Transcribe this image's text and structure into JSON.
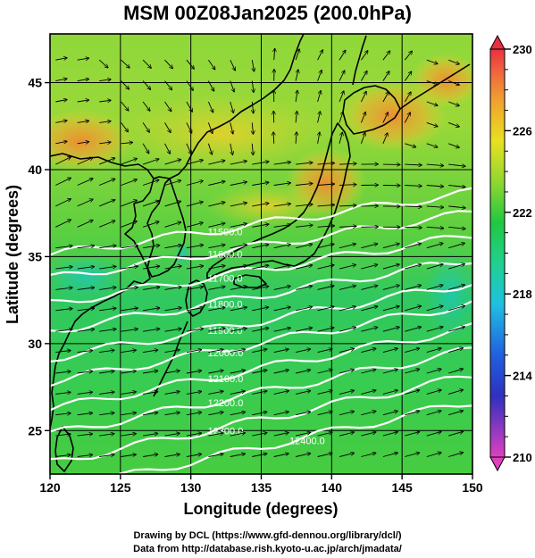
{
  "title": "MSM 00Z08Jan2025 (200.0hPa)",
  "x_axis": {
    "label": "Longitude (degrees)",
    "min": 120,
    "max": 150,
    "ticks": [
      120,
      125,
      130,
      135,
      140,
      145,
      150
    ]
  },
  "y_axis": {
    "label": "Latitude  (degrees)",
    "min": 22.5,
    "max": 47.8,
    "ticks": [
      25,
      30,
      35,
      40,
      45
    ]
  },
  "colorbar": {
    "min": 210,
    "max": 230,
    "labels": [
      210,
      214,
      218,
      222,
      226,
      230
    ],
    "stops": [
      {
        "v": 210,
        "c": "#e040c0"
      },
      {
        "v": 213,
        "c": "#3030c0"
      },
      {
        "v": 215,
        "c": "#2060e0"
      },
      {
        "v": 217.5,
        "c": "#20c0e0"
      },
      {
        "v": 219.5,
        "c": "#20d090"
      },
      {
        "v": 221.5,
        "c": "#20c840"
      },
      {
        "v": 223.5,
        "c": "#90d830"
      },
      {
        "v": 225.5,
        "c": "#e8e020"
      },
      {
        "v": 227.5,
        "c": "#f0a030"
      },
      {
        "v": 229,
        "c": "#f06040"
      },
      {
        "v": 230,
        "c": "#e83040"
      }
    ]
  },
  "contours": [
    {
      "label": "11500.0",
      "lat_at_130": 36.3
    },
    {
      "label": "11600.0",
      "lat_at_130": 35.0
    },
    {
      "label": "11700.0",
      "lat_at_130": 33.6
    },
    {
      "label": "11800.0",
      "lat_at_130": 32.1
    },
    {
      "label": "11900.0",
      "lat_at_130": 30.6
    },
    {
      "label": "12000.0",
      "lat_at_130": 29.3
    },
    {
      "label": "12100.0",
      "lat_at_130": 27.8
    },
    {
      "label": "12200.0",
      "lat_at_130": 26.4
    },
    {
      "label": "12300.0",
      "lat_at_130": 24.8
    },
    {
      "label": "12400.0",
      "lat_at_130": 23.2
    }
  ],
  "credits": [
    "Drawing by DCL (https://www.gfd‐dennou.org/library/dcl/)",
    "Data from http://database.rish.kyoto‐u.ac.jp/arch/jmadata/"
  ]
}
